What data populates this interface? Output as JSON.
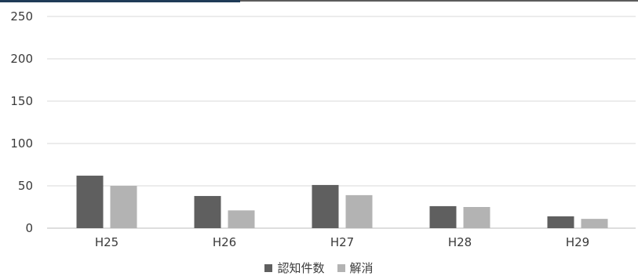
{
  "chart_data": {
    "type": "bar",
    "categories": [
      "H25",
      "H26",
      "H27",
      "H28",
      "H29"
    ],
    "series": [
      {
        "name": "認知件数",
        "values": [
          62,
          38,
          51,
          26,
          14
        ],
        "color": "#5f5f5f"
      },
      {
        "name": "解消",
        "values": [
          50,
          21,
          39,
          25,
          11
        ],
        "color": "#b3b3b3"
      }
    ],
    "ylim": [
      0,
      250
    ],
    "yticks": [
      0,
      50,
      100,
      150,
      200,
      250
    ],
    "grid": true,
    "legend_position": "bottom",
    "title": "",
    "xlabel": "",
    "ylabel": ""
  }
}
